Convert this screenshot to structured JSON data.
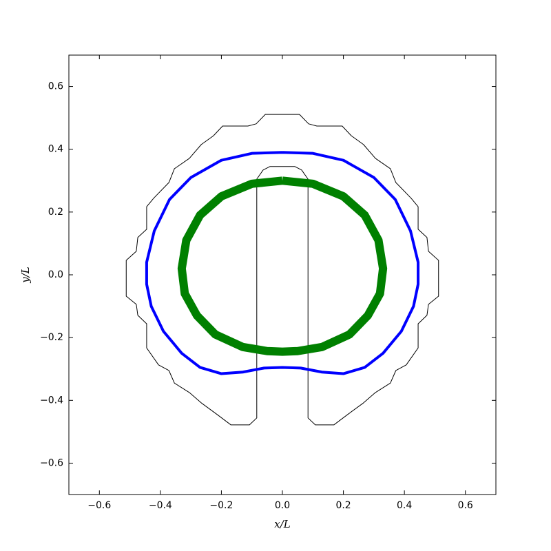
{
  "chart_data": {
    "type": "line",
    "xlabel": "x/L",
    "ylabel": "y/L",
    "xlim": [
      -0.7,
      0.7
    ],
    "ylim": [
      -0.7,
      0.7
    ],
    "xticks": [
      {
        "value": -0.6,
        "label": "−0.6"
      },
      {
        "value": -0.4,
        "label": "−0.4"
      },
      {
        "value": -0.2,
        "label": "−0.2"
      },
      {
        "value": 0,
        "label": "0.0"
      },
      0.2,
      0.4,
      0.6
    ],
    "yticks": [
      {
        "value": -0.6,
        "label": "−0.6"
      },
      {
        "value": -0.4,
        "label": "−0.4"
      },
      {
        "value": -0.2,
        "label": "−0.2"
      },
      {
        "value": 0,
        "label": "0.0"
      },
      0.2,
      0.4,
      0.6
    ],
    "grid": false,
    "series": [
      {
        "color": "#000000",
        "linewidth": 1,
        "x": [
          0.056,
          0.086,
          0.113,
          0.196,
          0.226,
          0.266,
          0.305,
          0.354,
          0.372,
          0.422,
          0.445,
          0.445,
          0.474,
          0.479,
          0.512,
          0.512,
          0.479,
          0.474,
          0.445,
          0.445,
          0.406,
          0.372,
          0.354,
          0.305,
          0.266,
          0.214,
          0.169,
          0.108,
          0.084,
          0.084,
          0.063,
          0.041,
          -0.041,
          -0.063,
          -0.084,
          -0.084,
          -0.108,
          -0.169,
          -0.214,
          -0.266,
          -0.305,
          -0.354,
          -0.372,
          -0.406,
          -0.445,
          -0.445,
          -0.474,
          -0.479,
          -0.512,
          -0.512,
          -0.479,
          -0.474,
          -0.445,
          -0.445,
          -0.422,
          -0.372,
          -0.354,
          -0.305,
          -0.266,
          -0.226,
          -0.196,
          -0.113,
          -0.086,
          -0.056,
          0.056
        ],
        "y": [
          0.511,
          0.481,
          0.474,
          0.474,
          0.443,
          0.415,
          0.371,
          0.338,
          0.294,
          0.244,
          0.217,
          0.145,
          0.119,
          0.075,
          0.046,
          -0.068,
          -0.094,
          -0.129,
          -0.156,
          -0.233,
          -0.287,
          -0.305,
          -0.345,
          -0.375,
          -0.408,
          -0.445,
          -0.478,
          -0.478,
          -0.456,
          0.305,
          0.334,
          0.345,
          0.345,
          0.334,
          0.305,
          -0.456,
          -0.478,
          -0.478,
          -0.445,
          -0.408,
          -0.375,
          -0.345,
          -0.305,
          -0.287,
          -0.233,
          -0.156,
          -0.129,
          -0.094,
          -0.068,
          0.046,
          0.075,
          0.119,
          0.145,
          0.217,
          0.244,
          0.294,
          0.338,
          0.371,
          0.415,
          0.443,
          0.474,
          0.474,
          0.481,
          0.511,
          0.511
        ]
      },
      {
        "color": "#0000ff",
        "linewidth": 4,
        "x": [
          0,
          0.1,
          0.2,
          0.3,
          0.37,
          0.42,
          0.445,
          0.445,
          0.43,
          0.39,
          0.33,
          0.27,
          0.2,
          0.13,
          0.06,
          0,
          -0.06,
          -0.13,
          -0.2,
          -0.27,
          -0.33,
          -0.39,
          -0.43,
          -0.445,
          -0.445,
          -0.42,
          -0.37,
          -0.3,
          -0.2,
          -0.1,
          0
        ],
        "y": [
          0.39,
          0.387,
          0.365,
          0.31,
          0.24,
          0.14,
          0.04,
          -0.03,
          -0.1,
          -0.18,
          -0.25,
          -0.295,
          -0.315,
          -0.31,
          -0.297,
          -0.295,
          -0.297,
          -0.31,
          -0.315,
          -0.295,
          -0.25,
          -0.18,
          -0.1,
          -0.03,
          0.04,
          0.14,
          0.24,
          0.31,
          0.365,
          0.387,
          0.39
        ]
      },
      {
        "color": "#008000",
        "linewidth": 12,
        "x": [
          0,
          0.1,
          0.2,
          0.27,
          0.315,
          0.33,
          0.32,
          0.28,
          0.22,
          0.13,
          0.05,
          0,
          -0.05,
          -0.13,
          -0.22,
          -0.28,
          -0.32,
          -0.33,
          -0.315,
          -0.27,
          -0.2,
          -0.1,
          0
        ],
        "y": [
          0.3,
          0.29,
          0.25,
          0.19,
          0.11,
          0.02,
          -0.06,
          -0.13,
          -0.19,
          -0.23,
          -0.243,
          -0.245,
          -0.243,
          -0.23,
          -0.19,
          -0.13,
          -0.06,
          0.02,
          0.11,
          0.19,
          0.25,
          0.29,
          0.3
        ]
      }
    ]
  }
}
